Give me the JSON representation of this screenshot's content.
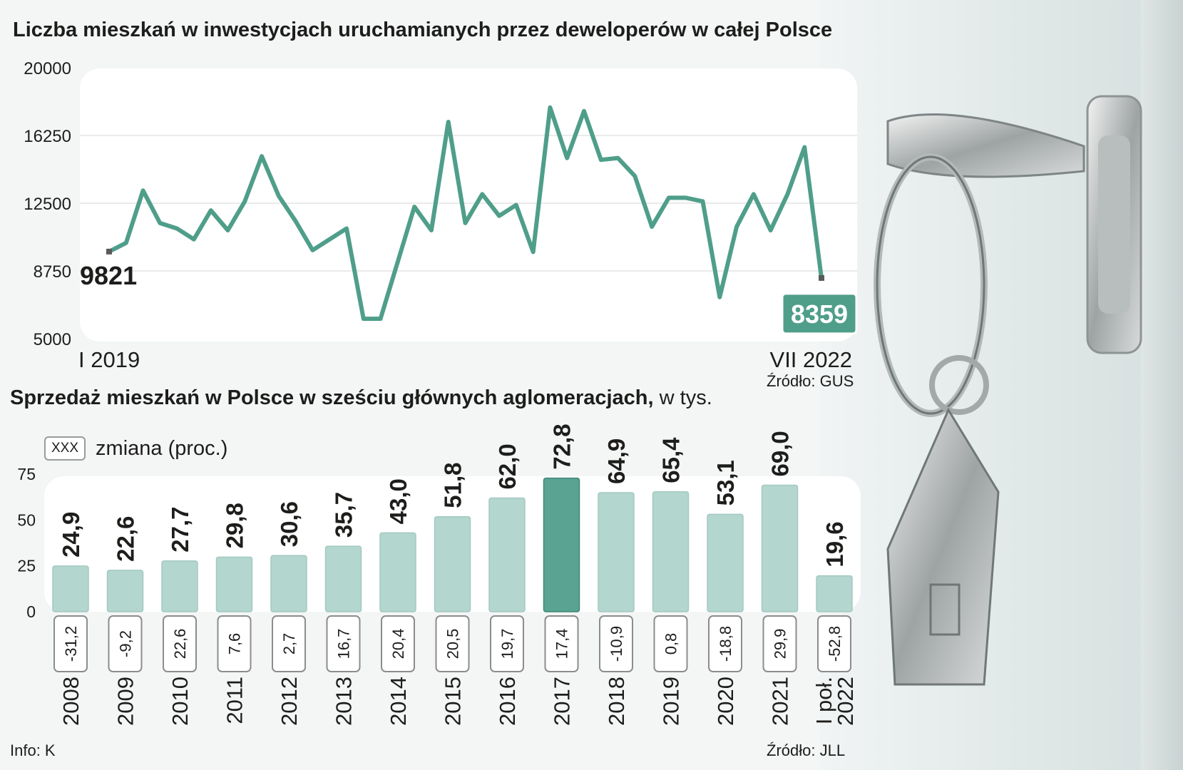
{
  "chart_data": [
    {
      "type": "line",
      "title": "Liczba mieszkań w inwestycjach uruchamianych przez deweloperów w całej Polsce",
      "source": "Źródło: GUS",
      "x_start_label": "I 2019",
      "x_end_label": "VII 2022",
      "ylim": [
        5000,
        20000
      ],
      "y_ticks": [
        "20000",
        "16250",
        "12500",
        "8750",
        "5000"
      ],
      "first_value_label": "9821",
      "last_value_label": "8359",
      "values": [
        9821,
        10300,
        13200,
        11400,
        11100,
        10500,
        12100,
        11000,
        12600,
        15100,
        12900,
        11500,
        9900,
        10500,
        11100,
        6100,
        6100,
        9200,
        12300,
        11000,
        17000,
        11400,
        13000,
        11800,
        12400,
        9800,
        17800,
        15000,
        17600,
        14900,
        15000,
        14000,
        11200,
        12800,
        12800,
        12600,
        7300,
        11200,
        13000,
        11000,
        13000,
        15600,
        8359
      ],
      "line_color": "#4f9e8a",
      "grid": true
    },
    {
      "type": "bar",
      "title": "Sprzedaż mieszkań w Polsce w sześciu głównych aglomeracjach,",
      "title_unit": " w tys.",
      "legend_box": "XXX",
      "legend_label": "zmiana (proc.)",
      "source": "Źródło: JLL",
      "ylim": [
        0,
        75
      ],
      "y_ticks": [
        "75",
        "50",
        "25",
        "0"
      ],
      "categories": [
        [
          "2008"
        ],
        [
          "2009"
        ],
        [
          "2010"
        ],
        [
          "2011"
        ],
        [
          "2012"
        ],
        [
          "2013"
        ],
        [
          "2014"
        ],
        [
          "2015"
        ],
        [
          "2016"
        ],
        [
          "2017"
        ],
        [
          "2018"
        ],
        [
          "2019"
        ],
        [
          "2020"
        ],
        [
          "2021"
        ],
        [
          "I poł.",
          "2022"
        ]
      ],
      "values": [
        24.9,
        22.6,
        27.7,
        29.8,
        30.6,
        35.7,
        43.0,
        51.8,
        62.0,
        72.8,
        64.9,
        65.4,
        53.1,
        69.0,
        19.6
      ],
      "value_labels": [
        "24,9",
        "22,6",
        "27,7",
        "29,8",
        "30,6",
        "35,7",
        "43,0",
        "51,8",
        "62,0",
        "72,8",
        "64,9",
        "65,4",
        "53,1",
        "69,0",
        "19,6"
      ],
      "change_labels": [
        "-31,2",
        "-9,2",
        "22,6",
        "7,6",
        "2,7",
        "16,7",
        "20,4",
        "20,5",
        "19,7",
        "17,4",
        "-10,9",
        "0,8",
        "-18,8",
        "29,9",
        "-52,8"
      ],
      "highlight_index": 9,
      "bar_color": "#b3d6cf",
      "highlight_color": "#5aa392"
    }
  ],
  "footer": {
    "info": "Info: K"
  }
}
